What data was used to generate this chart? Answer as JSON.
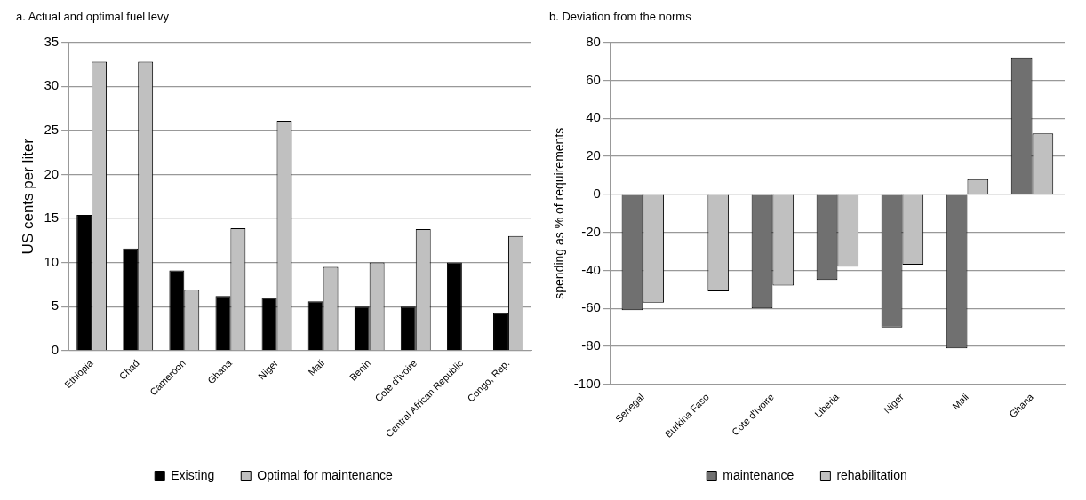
{
  "chart_data": [
    {
      "type": "bar",
      "title": "a. Actual and optimal fuel levy",
      "ylabel": "US cents per liter",
      "categories": [
        "Ethiopia",
        "Chad",
        "Cameroon",
        "Ghana",
        "Niger",
        "Mali",
        "Benin",
        "Cote d'Ivoire",
        "Central African Republic",
        "Congo, Rep."
      ],
      "series": [
        {
          "name": "Existing",
          "color": "#000000",
          "values": [
            15.4,
            11.6,
            9.1,
            6.2,
            6.0,
            5.6,
            5.0,
            5.0,
            10.0,
            4.3
          ]
        },
        {
          "name": "Optimal for maintenance",
          "color": "#c0c0c0",
          "values": [
            32.8,
            32.8,
            6.9,
            13.9,
            26.1,
            9.5,
            10.0,
            13.8,
            null,
            13.0
          ]
        }
      ],
      "ylim": [
        0,
        35
      ],
      "yticks": [
        0,
        5,
        10,
        15,
        20,
        25,
        30,
        35
      ],
      "grid": "y",
      "legend": "bottom"
    },
    {
      "type": "bar",
      "title": "b. Deviation from the norms",
      "ylabel": "spending as % of requirements",
      "categories": [
        "Senegal",
        "Burkina Faso",
        "Cote d'Ivoire",
        "Liberia",
        "Niger",
        "Mali",
        "Ghana"
      ],
      "series": [
        {
          "name": "maintenance",
          "color": "#707070",
          "values": [
            -61,
            null,
            -60,
            -45,
            -70,
            -81,
            72
          ]
        },
        {
          "name": "rehabilitation",
          "color": "#c0c0c0",
          "values": [
            -57,
            -51,
            -48,
            -38,
            -37,
            8,
            32
          ]
        }
      ],
      "ylim": [
        -100,
        80
      ],
      "yticks": [
        -100,
        -80,
        -60,
        -40,
        -20,
        0,
        20,
        40,
        60,
        80
      ],
      "grid": "y",
      "legend": "bottom"
    }
  ]
}
